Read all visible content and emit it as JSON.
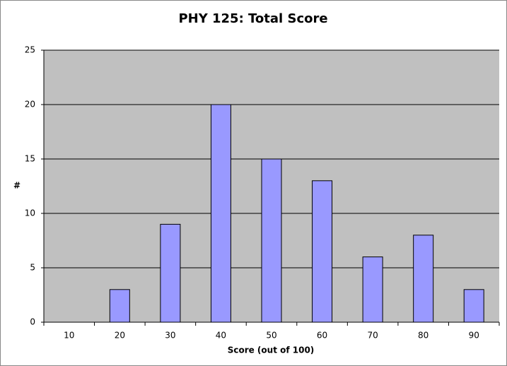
{
  "chart_data": {
    "type": "bar",
    "title": "PHY 125: Total Score",
    "x_label": "Score (out of 100)",
    "y_label": "#",
    "categories": [
      "10",
      "20",
      "30",
      "40",
      "50",
      "60",
      "70",
      "80",
      "90"
    ],
    "values": [
      0,
      3,
      9,
      20,
      15,
      13,
      6,
      8,
      3
    ],
    "color": "#9999ff",
    "ylim": [
      0,
      25
    ],
    "yticks": [
      0,
      5,
      10,
      15,
      20,
      25
    ],
    "grid": true
  }
}
